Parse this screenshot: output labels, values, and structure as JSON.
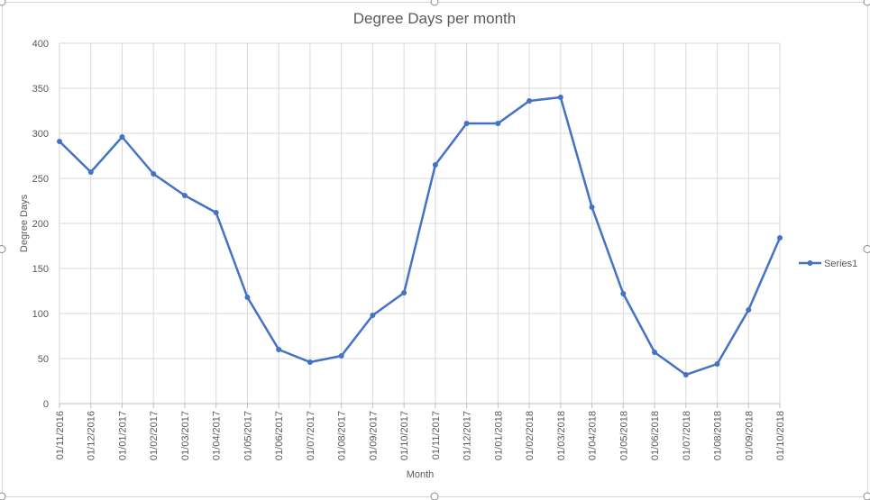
{
  "chart_data": {
    "type": "line",
    "title": "Degree Days per month",
    "xlabel": "Month",
    "ylabel": "Degree Days",
    "ylim": [
      0,
      400
    ],
    "y_ticks": [
      0,
      50,
      100,
      150,
      200,
      250,
      300,
      350,
      400
    ],
    "grid": true,
    "legend_position": "right",
    "categories": [
      "01/11/2016",
      "01/12/2016",
      "01/01/2017",
      "01/02/2017",
      "01/03/2017",
      "01/04/2017",
      "01/05/2017",
      "01/06/2017",
      "01/07/2017",
      "01/08/2017",
      "01/09/2017",
      "01/10/2017",
      "01/11/2017",
      "01/12/2017",
      "01/01/2018",
      "01/02/2018",
      "01/03/2018",
      "01/04/2018",
      "01/05/2018",
      "01/06/2018",
      "01/07/2018",
      "01/08/2018",
      "01/09/2018",
      "01/10/2018"
    ],
    "series": [
      {
        "name": "Series1",
        "color": "#4472c4",
        "values": [
          291,
          257,
          296,
          255,
          231,
          212,
          118,
          60,
          46,
          53,
          98,
          123,
          265,
          311,
          311,
          336,
          340,
          218,
          122,
          57,
          32,
          44,
          104,
          184
        ]
      }
    ]
  }
}
